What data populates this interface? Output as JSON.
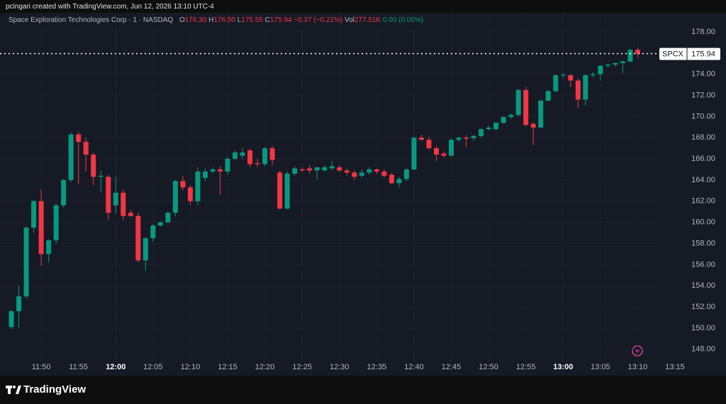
{
  "header": {
    "credit": "pcingari created with TradingView.com, Jun 12, 2026 13:10 UTC-4",
    "symbol_name": "Space Exploration Technologies Corp · 1 · NASDAQ",
    "open_label": "O",
    "open": "176.30",
    "high_label": "H",
    "high": "176.50",
    "low_label": "L",
    "low": "175.55",
    "close_label": "C",
    "close": "175.94",
    "change": "−0.37 (−0.21%)",
    "volume_label": "Vol",
    "volume": "277.51K",
    "extended_change": "0.00 (0.00%)"
  },
  "footer": {
    "brand": "TradingView"
  },
  "chart_data": {
    "type": "candlestick",
    "symbol": "SPCX",
    "last_price": {
      "value": 175.94,
      "label": "175.94"
    },
    "up_color": "#089981",
    "down_color": "#f23645",
    "grid": true,
    "x": [
      "11:46",
      "11:47",
      "11:48",
      "11:49",
      "11:50",
      "11:51",
      "11:52",
      "11:53",
      "11:54",
      "11:55",
      "11:56",
      "11:57",
      "11:58",
      "11:59",
      "12:00",
      "12:01",
      "12:02",
      "12:03",
      "12:04",
      "12:05",
      "12:06",
      "12:07",
      "12:08",
      "12:09",
      "12:10",
      "12:11",
      "12:12",
      "12:13",
      "12:14",
      "12:15",
      "12:16",
      "12:17",
      "12:18",
      "12:19",
      "12:20",
      "12:21",
      "12:22",
      "12:23",
      "12:24",
      "12:25",
      "12:26",
      "12:27",
      "12:28",
      "12:29",
      "12:30",
      "12:31",
      "12:32",
      "12:33",
      "12:34",
      "12:35",
      "12:36",
      "12:37",
      "12:38",
      "12:39",
      "12:40",
      "12:41",
      "12:42",
      "12:43",
      "12:44",
      "12:45",
      "12:46",
      "12:47",
      "12:48",
      "12:49",
      "12:50",
      "12:51",
      "12:52",
      "12:53",
      "12:54",
      "12:55",
      "12:56",
      "12:57",
      "12:58",
      "12:59",
      "13:00",
      "13:01",
      "13:02",
      "13:03",
      "13:04",
      "13:05",
      "13:06",
      "13:07",
      "13:08",
      "13:09",
      "13:10"
    ],
    "open": [
      150.1,
      151.6,
      153.0,
      159.5,
      162.0,
      157.0,
      158.3,
      161.6,
      164.0,
      168.3,
      167.6,
      166.4,
      164.3,
      164.3,
      161.6,
      162.8,
      160.9,
      160.6,
      156.4,
      158.5,
      159.7,
      160.0,
      160.9,
      163.9,
      163.3,
      162.0,
      164.2,
      164.8,
      165.0,
      164.8,
      166.0,
      166.3,
      166.8,
      165.6,
      165.5,
      167.0,
      164.7,
      161.3,
      164.6,
      165.0,
      165.1,
      164.9,
      164.9,
      165.1,
      165.2,
      164.9,
      164.7,
      164.4,
      164.7,
      165.0,
      164.8,
      164.5,
      163.7,
      164.1,
      165.0,
      168.0,
      167.8,
      167.0,
      166.5,
      166.3,
      167.8,
      168.0,
      167.95,
      168.15,
      168.8,
      168.8,
      169.4,
      169.95,
      170.15,
      172.5,
      169.3,
      168.95,
      171.5,
      172.4,
      173.9,
      173.9,
      173.4,
      171.6,
      173.9,
      174.0,
      174.8,
      174.9,
      175.05,
      175.2,
      176.3
    ],
    "high": [
      151.7,
      154.0,
      159.6,
      162.1,
      163.1,
      158.4,
      161.8,
      164.1,
      168.5,
      168.5,
      168.0,
      166.6,
      164.9,
      164.5,
      164.3,
      163.1,
      161.2,
      160.9,
      158.6,
      159.8,
      160.1,
      161.0,
      164.0,
      164.4,
      163.5,
      165.2,
      165.1,
      165.2,
      165.3,
      166.2,
      166.8,
      167.0,
      167.0,
      166.0,
      167.1,
      167.2,
      164.9,
      164.8,
      165.3,
      165.2,
      165.4,
      165.2,
      165.4,
      165.8,
      165.4,
      165.1,
      164.9,
      165.0,
      165.2,
      165.1,
      165.0,
      164.7,
      164.3,
      165.1,
      168.1,
      168.3,
      168.1,
      167.2,
      166.7,
      167.9,
      168.1,
      168.2,
      168.3,
      168.9,
      169.1,
      169.5,
      170.0,
      170.3,
      172.6,
      172.8,
      169.5,
      171.6,
      172.5,
      174.0,
      174.1,
      174.0,
      173.6,
      174.0,
      174.2,
      174.8,
      175.0,
      175.1,
      175.3,
      176.4,
      176.5
    ],
    "low": [
      149.9,
      150.1,
      152.8,
      159.0,
      155.9,
      156.2,
      158.0,
      161.4,
      163.8,
      163.6,
      164.8,
      163.5,
      162.8,
      160.2,
      160.8,
      160.2,
      160.5,
      156.2,
      155.4,
      158.2,
      159.6,
      159.9,
      160.6,
      163.0,
      161.6,
      161.6,
      163.9,
      164.6,
      162.6,
      164.5,
      165.9,
      166.0,
      165.2,
      165.2,
      165.3,
      165.4,
      161.2,
      161.2,
      164.4,
      164.8,
      164.6,
      164.0,
      164.8,
      164.9,
      164.8,
      164.4,
      164.0,
      164.2,
      164.5,
      164.6,
      164.2,
      163.6,
      163.3,
      163.9,
      164.9,
      167.7,
      166.9,
      165.8,
      166.1,
      166.2,
      167.6,
      167.1,
      167.7,
      168.0,
      168.7,
      168.7,
      169.3,
      169.8,
      170.0,
      169.1,
      167.3,
      168.9,
      171.4,
      172.3,
      173.6,
      172.8,
      170.8,
      171.0,
      173.7,
      173.4,
      174.6,
      174.7,
      174.1,
      175.1,
      175.55
    ],
    "close": [
      151.6,
      153.0,
      159.5,
      162.0,
      157.0,
      158.3,
      161.6,
      164.0,
      168.3,
      167.6,
      166.4,
      164.3,
      164.4,
      160.9,
      162.8,
      160.6,
      160.6,
      156.4,
      158.5,
      159.7,
      160.0,
      160.9,
      163.9,
      163.3,
      162.0,
      164.8,
      164.8,
      165.0,
      164.8,
      166.0,
      166.6,
      166.6,
      165.5,
      165.5,
      167.0,
      165.9,
      161.3,
      164.6,
      165.1,
      164.9,
      164.9,
      165.2,
      165.2,
      165.3,
      164.9,
      164.7,
      164.3,
      164.7,
      165.0,
      164.8,
      164.4,
      163.7,
      164.1,
      165.0,
      168.0,
      167.8,
      167.0,
      166.4,
      166.3,
      167.8,
      168.0,
      167.9,
      168.15,
      168.8,
      168.95,
      169.4,
      169.95,
      170.15,
      172.5,
      169.2,
      168.95,
      171.5,
      172.4,
      173.9,
      173.95,
      173.4,
      171.6,
      173.9,
      174.0,
      174.8,
      174.9,
      175.05,
      175.2,
      176.3,
      175.94
    ],
    "xlim": [
      "11:44",
      "13:13"
    ],
    "xticks": [
      "11:50",
      "11:55",
      "12:00",
      "12:05",
      "12:10",
      "12:15",
      "12:20",
      "12:25",
      "12:30",
      "12:35",
      "12:40",
      "12:45",
      "12:50",
      "12:55",
      "13:00",
      "13:05",
      "13:10",
      "13:15"
    ],
    "ylim": [
      146.85,
      179.0
    ],
    "yticks": [
      {
        "value": 148,
        "label": "148.00"
      },
      {
        "value": 150,
        "label": "150.00"
      },
      {
        "value": 152,
        "label": "152.00"
      },
      {
        "value": 154,
        "label": "154.00"
      },
      {
        "value": 156,
        "label": "156.00"
      },
      {
        "value": 158,
        "label": "158.00"
      },
      {
        "value": 160,
        "label": "160.00"
      },
      {
        "value": 162,
        "label": "162.00"
      },
      {
        "value": 164,
        "label": "164.00"
      },
      {
        "value": 166,
        "label": "166.00"
      },
      {
        "value": 168,
        "label": "168.00"
      },
      {
        "value": 170,
        "label": "170.00"
      },
      {
        "value": 172,
        "label": "172.00"
      },
      {
        "value": 174,
        "label": "174.00"
      },
      {
        "value": 176,
        "label": "176.00"
      },
      {
        "value": 178,
        "label": "178.00"
      }
    ]
  }
}
